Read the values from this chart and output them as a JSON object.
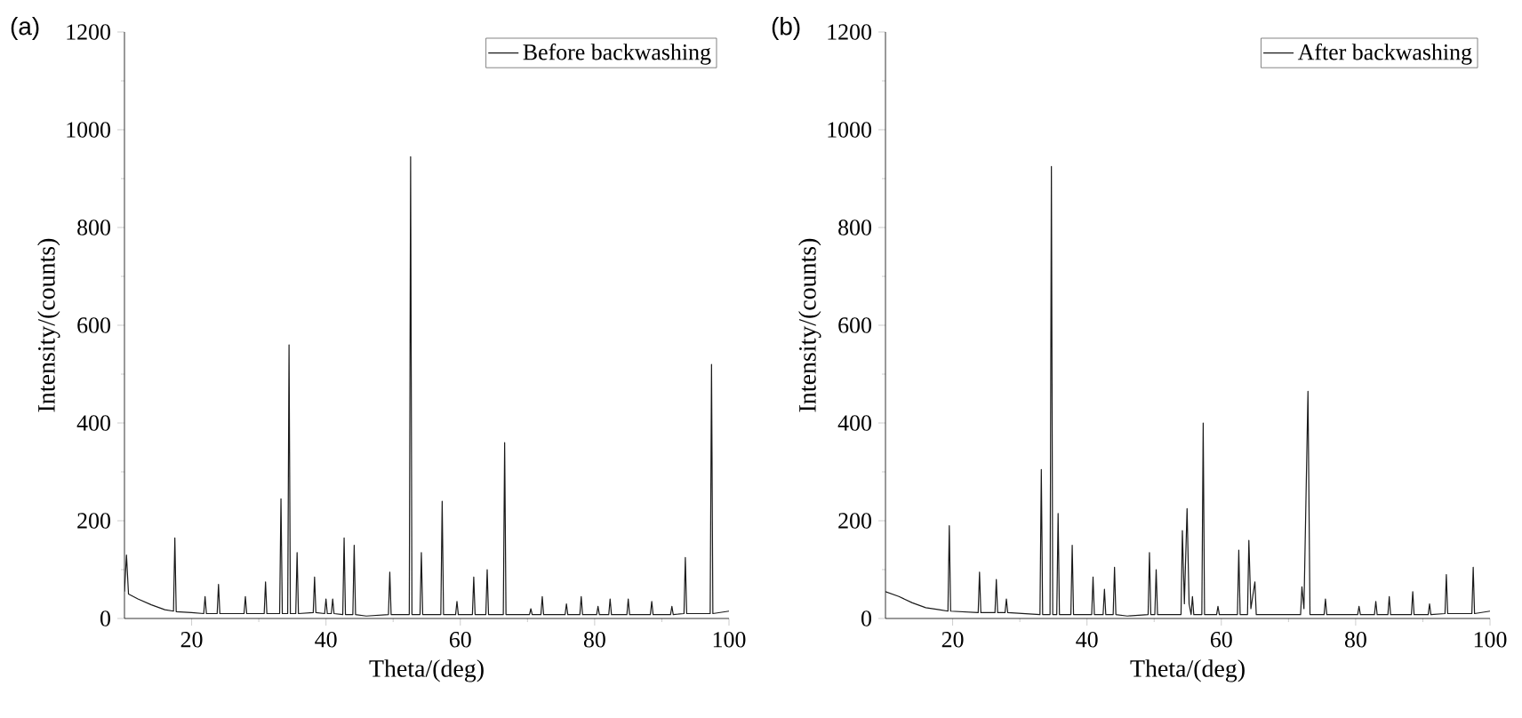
{
  "chart_data": [
    {
      "type": "line",
      "title": "(a)",
      "xlabel": "Theta/(deg)",
      "ylabel": "Intensity/(counts)",
      "xlim": [
        10,
        100
      ],
      "ylim": [
        0,
        1200
      ],
      "xticks": [
        20,
        40,
        60,
        80,
        100
      ],
      "yticks": [
        0,
        200,
        400,
        600,
        800,
        1000,
        1200
      ],
      "legend": "top right",
      "grid": false,
      "series": [
        {
          "name": "Before backwashing",
          "color": "#1a1a1a",
          "x": [
            10,
            10.3,
            10.6,
            12,
            14,
            16,
            17.3,
            17.5,
            17.7,
            20,
            21.8,
            22,
            22.2,
            23.8,
            24,
            24.2,
            27.8,
            28,
            28.2,
            30.8,
            31,
            31.2,
            33.1,
            33.3,
            33.5,
            34.3,
            34.5,
            34.7,
            35.5,
            35.7,
            35.9,
            38.1,
            38.3,
            38.5,
            39.8,
            40,
            40.2,
            40.8,
            41,
            41.2,
            42.5,
            42.7,
            42.9,
            44,
            44.2,
            44.4,
            46,
            49.3,
            49.5,
            49.7,
            52.4,
            52.6,
            52.8,
            54,
            54.2,
            54.4,
            57.1,
            57.3,
            57.5,
            59.3,
            59.5,
            59.7,
            61.8,
            62,
            62.2,
            63.8,
            64,
            64.2,
            66.4,
            66.6,
            66.8,
            70.3,
            70.5,
            70.7,
            72,
            72.2,
            72.4,
            75.6,
            75.8,
            76,
            77.8,
            78,
            78.2,
            80.3,
            80.5,
            80.7,
            82.1,
            82.3,
            82.5,
            84.8,
            85,
            85.2,
            88.3,
            88.5,
            88.7,
            91.3,
            91.5,
            91.7,
            93.3,
            93.5,
            93.7,
            97.2,
            97.4,
            97.6,
            100
          ],
          "values": [
            55,
            130,
            50,
            40,
            28,
            18,
            15,
            165,
            14,
            12,
            10,
            45,
            10,
            10,
            70,
            10,
            10,
            45,
            10,
            10,
            75,
            10,
            10,
            245,
            10,
            10,
            560,
            10,
            10,
            135,
            10,
            12,
            85,
            12,
            10,
            40,
            10,
            10,
            40,
            10,
            8,
            165,
            8,
            8,
            150,
            8,
            5,
            8,
            95,
            8,
            8,
            945,
            8,
            8,
            135,
            8,
            8,
            240,
            8,
            8,
            35,
            8,
            8,
            85,
            8,
            8,
            100,
            8,
            8,
            360,
            8,
            8,
            20,
            8,
            8,
            45,
            8,
            8,
            30,
            8,
            8,
            45,
            8,
            8,
            25,
            8,
            8,
            40,
            8,
            8,
            40,
            8,
            8,
            35,
            8,
            8,
            25,
            8,
            10,
            125,
            10,
            10,
            520,
            10,
            15
          ]
        }
      ]
    },
    {
      "type": "line",
      "title": "(b)",
      "xlabel": "Theta/(deg)",
      "ylabel": "Intensity/(counts)",
      "xlim": [
        10,
        100
      ],
      "ylim": [
        0,
        1200
      ],
      "xticks": [
        20,
        40,
        60,
        80,
        100
      ],
      "yticks": [
        0,
        200,
        400,
        600,
        800,
        1000,
        1200
      ],
      "legend": "top right",
      "grid": false,
      "series": [
        {
          "name": "After backwashing",
          "color": "#1a1a1a",
          "x": [
            10,
            12,
            14,
            16,
            18,
            19.3,
            19.5,
            19.7,
            23.8,
            24,
            24.2,
            26.3,
            26.5,
            26.7,
            27.8,
            28,
            28.2,
            33,
            33.2,
            33.4,
            34.5,
            34.7,
            34.9,
            35.5,
            35.7,
            35.9,
            37.6,
            37.8,
            38,
            40.7,
            40.9,
            41.1,
            42.4,
            42.6,
            42.8,
            43.9,
            44.1,
            44.3,
            46,
            49.1,
            49.3,
            49.5,
            50.1,
            50.3,
            50.5,
            54,
            54.2,
            54.5,
            54.9,
            55.2,
            55.5,
            55.7,
            55.9,
            57.1,
            57.3,
            57.5,
            59.3,
            59.5,
            59.7,
            62.4,
            62.6,
            62.8,
            63.9,
            64.1,
            64.4,
            65,
            65.2,
            71.8,
            72,
            72.3,
            72.9,
            73.2,
            75.3,
            75.5,
            75.7,
            80.3,
            80.5,
            80.7,
            82.8,
            83,
            83.2,
            84.8,
            85,
            85.2,
            88.3,
            88.5,
            88.7,
            90.8,
            91,
            91.2,
            93.3,
            93.5,
            93.7,
            97.3,
            97.5,
            97.7,
            100
          ],
          "values": [
            55,
            45,
            32,
            22,
            18,
            15,
            190,
            15,
            12,
            95,
            12,
            12,
            80,
            12,
            12,
            40,
            12,
            8,
            305,
            8,
            8,
            925,
            8,
            8,
            215,
            8,
            8,
            150,
            8,
            8,
            85,
            8,
            8,
            60,
            8,
            8,
            105,
            8,
            5,
            8,
            135,
            8,
            8,
            100,
            8,
            8,
            180,
            30,
            225,
            30,
            8,
            45,
            8,
            8,
            400,
            8,
            8,
            25,
            8,
            8,
            140,
            8,
            8,
            160,
            20,
            75,
            8,
            8,
            65,
            20,
            465,
            8,
            8,
            40,
            8,
            8,
            25,
            8,
            8,
            35,
            8,
            8,
            45,
            8,
            8,
            55,
            8,
            8,
            30,
            8,
            10,
            90,
            10,
            10,
            105,
            10,
            15
          ]
        }
      ]
    }
  ]
}
